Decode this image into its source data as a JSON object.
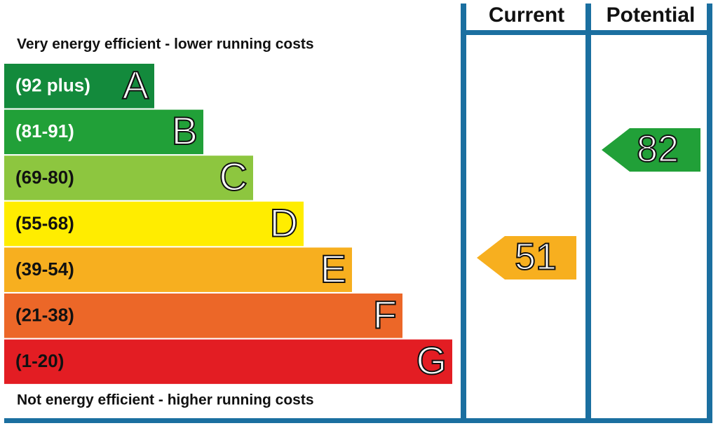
{
  "top_note": "Very energy efficient - lower running costs",
  "bottom_note": "Not energy efficient - higher running costs",
  "columns": {
    "current": "Current",
    "potential": "Potential"
  },
  "bands": [
    {
      "range": "(92 plus)",
      "letter": "A"
    },
    {
      "range": "(81-91)",
      "letter": "B"
    },
    {
      "range": "(69-80)",
      "letter": "C"
    },
    {
      "range": "(55-68)",
      "letter": "D"
    },
    {
      "range": "(39-54)",
      "letter": "E"
    },
    {
      "range": "(21-38)",
      "letter": "F"
    },
    {
      "range": "(1-20)",
      "letter": "G"
    }
  ],
  "current": 51,
  "potential": 82
}
